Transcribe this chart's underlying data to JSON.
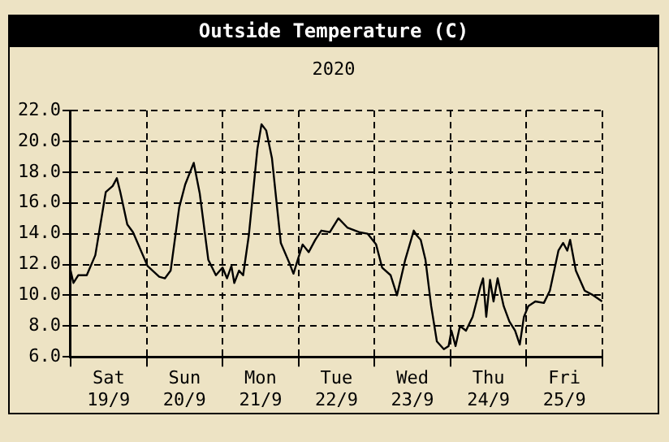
{
  "chart_data": {
    "type": "line",
    "title": "Outside Temperature (C)",
    "subtitle": "2020",
    "xlim": [
      "2020-09-19T00:00",
      "2020-09-26T00:00"
    ],
    "xticks": [
      {
        "value": "2020-09-19T00:00",
        "label": null
      },
      {
        "value": "2020-09-19T12:00",
        "label": "Sat 19/9"
      },
      {
        "value": "2020-09-20T00:00",
        "label": null
      },
      {
        "value": "2020-09-20T12:00",
        "label": "Sun 20/9"
      },
      {
        "value": "2020-09-21T00:00",
        "label": null
      },
      {
        "value": "2020-09-21T12:00",
        "label": "Mon 21/9"
      },
      {
        "value": "2020-09-22T00:00",
        "label": null
      },
      {
        "value": "2020-09-22T12:00",
        "label": "Tue 22/9"
      },
      {
        "value": "2020-09-23T00:00",
        "label": null
      },
      {
        "value": "2020-09-23T12:00",
        "label": "Wed 23/9"
      },
      {
        "value": "2020-09-24T00:00",
        "label": null
      },
      {
        "value": "2020-09-24T12:00",
        "label": "Thu 24/9"
      },
      {
        "value": "2020-09-25T00:00",
        "label": null
      },
      {
        "value": "2020-09-25T12:00",
        "label": "Fri 25/9"
      },
      {
        "value": "2020-09-26T00:00",
        "label": null
      }
    ],
    "ylim": [
      6,
      22
    ],
    "yticks": [
      {
        "value": 6,
        "label": "6.0"
      },
      {
        "value": 8,
        "label": "8.0"
      },
      {
        "value": 10,
        "label": "10.0"
      },
      {
        "value": 12,
        "label": "12.0"
      },
      {
        "value": 14,
        "label": "14.0"
      },
      {
        "value": 16,
        "label": "16.0"
      },
      {
        "value": 18,
        "label": "18.0"
      },
      {
        "value": 20,
        "label": "20.0"
      },
      {
        "value": 22,
        "label": "22.0"
      }
    ],
    "grid": true,
    "legend": false,
    "marker": "none",
    "line_style": "solid",
    "series": [
      {
        "color": "#000000",
        "x": [
          "2020-09-19T00:00",
          "2020-09-19T00:54",
          "2020-09-19T02:24",
          "2020-09-19T05:06",
          "2020-09-19T07:48",
          "2020-09-19T11:06",
          "2020-09-19T13:18",
          "2020-09-19T14:36",
          "2020-09-19T15:42",
          "2020-09-19T17:54",
          "2020-09-19T19:42",
          "2020-09-20T00:18",
          "2020-09-20T04:00",
          "2020-09-20T05:48",
          "2020-09-20T07:36",
          "2020-09-20T10:18",
          "2020-09-20T12:12",
          "2020-09-20T14:54",
          "2020-09-20T16:48",
          "2020-09-20T19:30",
          "2020-09-20T21:54",
          "2020-09-21T00:00",
          "2020-09-21T01:24",
          "2020-09-21T02:48",
          "2020-09-21T03:42",
          "2020-09-21T05:12",
          "2020-09-21T06:30",
          "2020-09-21T08:18",
          "2020-09-21T11:00",
          "2020-09-21T12:18",
          "2020-09-21T13:48",
          "2020-09-21T15:36",
          "2020-09-21T18:24",
          "2020-09-21T21:06",
          "2020-09-21T22:24",
          "2020-09-21T23:54",
          "2020-09-22T01:18",
          "2020-09-22T03:12",
          "2020-09-22T05:18",
          "2020-09-22T07:12",
          "2020-09-22T09:54",
          "2020-09-22T12:36",
          "2020-09-22T15:24",
          "2020-09-22T19:06",
          "2020-09-22T21:48",
          "2020-09-23T00:30",
          "2020-09-23T02:24",
          "2020-09-23T05:06",
          "2020-09-23T07:06",
          "2020-09-23T09:42",
          "2020-09-23T12:24",
          "2020-09-23T13:18",
          "2020-09-23T14:36",
          "2020-09-23T16:06",
          "2020-09-23T17:54",
          "2020-09-23T19:42",
          "2020-09-23T21:54",
          "2020-09-23T23:24",
          "2020-09-24T00:18",
          "2020-09-24T01:36",
          "2020-09-24T03:00",
          "2020-09-24T04:54",
          "2020-09-24T07:00",
          "2020-09-24T09:30",
          "2020-09-24T10:18",
          "2020-09-24T11:18",
          "2020-09-24T12:30",
          "2020-09-24T13:36",
          "2020-09-24T14:54",
          "2020-09-24T16:48",
          "2020-09-24T18:36",
          "2020-09-24T20:24",
          "2020-09-24T21:54",
          "2020-09-24T23:12",
          "2020-09-25T00:36",
          "2020-09-25T02:48",
          "2020-09-25T05:30",
          "2020-09-25T07:24",
          "2020-09-25T10:06",
          "2020-09-25T11:36",
          "2020-09-25T12:54",
          "2020-09-25T13:48",
          "2020-09-25T15:36",
          "2020-09-25T18:24",
          "2020-09-25T21:06",
          "2020-09-25T23:54"
        ],
        "values": [
          11.6,
          10.8,
          11.3,
          11.3,
          12.6,
          16.7,
          17.1,
          17.6,
          16.7,
          14.6,
          14.1,
          11.9,
          11.2,
          11.1,
          11.6,
          15.7,
          17.2,
          18.6,
          16.6,
          12.3,
          11.3,
          11.8,
          11.1,
          11.9,
          10.8,
          11.6,
          11.3,
          13.9,
          19.5,
          21.1,
          20.7,
          18.9,
          13.4,
          12.1,
          11.4,
          12.4,
          13.3,
          12.8,
          13.6,
          14.2,
          14.1,
          15.0,
          14.4,
          14.1,
          14.0,
          13.3,
          11.8,
          11.3,
          10.0,
          12.3,
          14.2,
          13.9,
          13.6,
          12.3,
          9.3,
          7.0,
          6.5,
          6.7,
          7.7,
          6.7,
          8.0,
          7.7,
          8.6,
          10.6,
          11.1,
          8.6,
          11.0,
          9.6,
          11.1,
          9.3,
          8.3,
          7.7,
          6.8,
          8.6,
          9.3,
          9.6,
          9.5,
          10.3,
          12.9,
          13.4,
          12.9,
          13.6,
          11.6,
          10.3,
          10.0,
          9.6
        ]
      }
    ]
  }
}
